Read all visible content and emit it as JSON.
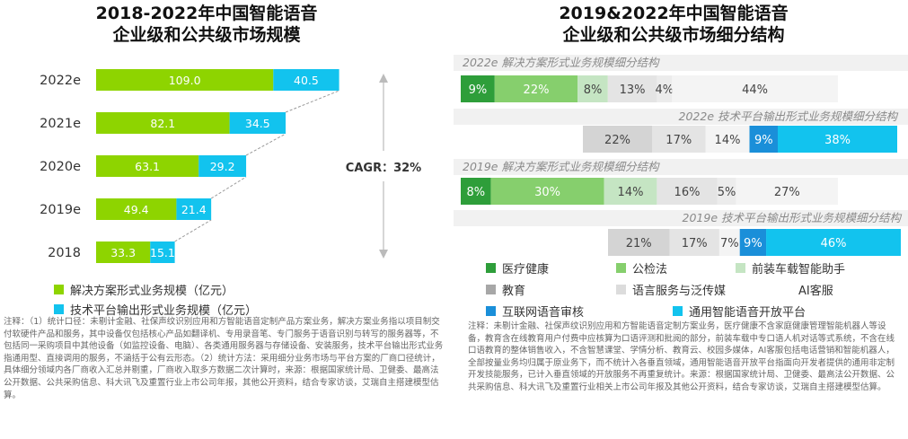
{
  "left": {
    "title_line1": "2018-2022年中国智能语音",
    "title_line2": "企业级和公共级市场规模",
    "cagr_label": "CAGR：32%",
    "legend": [
      {
        "label": "解决方案形式业务规模（亿元）",
        "color": "#8ed400"
      },
      {
        "label": "技术平台输出形式业务规模（亿元）",
        "color": "#12c3ee"
      }
    ],
    "notes": "注释：（1）统计口径：未剔计金融、社保声纹识别应用和方智能语音定制产品方案业务，解决方案业务指以项目制交付软硬件产品和服务，其中设备仅包括核心产品如翻译机、专用录音笔、专门服务于语音识别与转写的服务器等，不包括同一采购项目中其他设备（如监控设备、电脑）、各类通用服务器与存储设备、安装服务，技术平台输出形式业务指通用型、直接调用的服务，不涵括于公有云形态。（2）统计方法：采用细分业务市场与平台方案的厂商口径统计，具体细分领域内各厂商收入汇总并剔重，厂商收入取多方数据二次计算时，来源：根据国家统计局、卫健委、最高法公开数据、公共采购信息、科大讯飞及重置行业上市公司年报，其他公开资料，结合专家访谈，艾瑞自主搭建模型估算。"
  },
  "right": {
    "title_line1": "2019&2022年中国智能语音",
    "title_line2": "企业级和公共级市场细分结构",
    "subtitles": [
      "2022e 解决方案形式业务规模细分结构",
      "2022e 技术平台输出形式业务规模细分结构",
      "2019e 解决方案形式业务规模细分结构",
      "2019e 技术平台输出形式业务规模细分结构"
    ],
    "legend": [
      {
        "label": "医疗健康",
        "color": "#2e9e3a"
      },
      {
        "label": "公检法",
        "color": "#86cf6d"
      },
      {
        "label": "前装车载智能助手",
        "color": "#c5e5c3"
      },
      {
        "label": "教育",
        "color": "#a7a7a7"
      },
      {
        "label": "语言服务与泛传媒",
        "color": "#dcdcdc"
      },
      {
        "label": "AI客服",
        "color": "#f4f4f4"
      },
      {
        "label": "互联网语音审核",
        "color": "#1a8fd9"
      },
      {
        "label": "通用智能语音开放平台",
        "color": "#12c3ee"
      }
    ],
    "notes": "注释：未剔计金融、社保声纹识别应用和方智能语音定制方案业务，医疗健康不含家庭健康管理智能机器人等设备，教育含在线教育用户付费中应核算为口语评测和批阅的部分，前装车载中专口语人机对话等式系统，不含在线口语教育的整体销售收入，不含智慧课堂、学情分析、教育云、校园多媒体，AI客服包括电话营销和智能机器人，全部按量业务均归属于原业务下，而不统计入各垂直领域，通用智能语音开放平台指面向开发者提供的通用非定制开发技能服务，已计入垂直领域的开放服务不再重复统计。来源：根据国家统计局、卫健委、最高法公开数据、公共采购信息、科大讯飞及重置行业相关上市公司年报及其他公开资料，结合专家访谈，艾瑞自主搭建模型估算。"
  },
  "chart_data": [
    {
      "type": "bar",
      "orientation": "horizontal",
      "stacked": true,
      "title": "2018-2022年中国智能语音企业级和公共级市场规模",
      "categories": [
        "2018",
        "2019e",
        "2020e",
        "2021e",
        "2022e"
      ],
      "series": [
        {
          "name": "解决方案形式业务规模（亿元）",
          "color": "#8ed400",
          "values": [
            33.3,
            49.4,
            63.1,
            82.1,
            109.0
          ],
          "labels": [
            "33.3",
            "49.4",
            "63.1",
            "82.1",
            "109.0"
          ]
        },
        {
          "name": "技术平台输出形式业务规模（亿元）",
          "color": "#12c3ee",
          "values": [
            15.1,
            21.4,
            29.2,
            34.5,
            40.5
          ],
          "labels": [
            "15.1",
            "21.4",
            "29.2",
            "34.5",
            "40.5"
          ]
        }
      ],
      "annotation": "CAGR：32%"
    },
    {
      "type": "bar",
      "orientation": "horizontal",
      "stacked": true,
      "percent": true,
      "title": "2019&2022年中国智能语音企业级和公共级市场细分结构",
      "rows": [
        {
          "name": "2022e 解决方案形式业务规模细分结构",
          "segments": [
            {
              "category": "医疗健康",
              "value": 9,
              "color": "#2e9e3a",
              "label": "9%"
            },
            {
              "category": "公检法",
              "value": 22,
              "color": "#86cf6d",
              "label": "22%"
            },
            {
              "category": "前装车载智能助手",
              "value": 8,
              "color": "#c5e5c3",
              "label": "8%"
            },
            {
              "category": "教育",
              "value": 13,
              "color": "#e4e4e4",
              "label": "13%"
            },
            {
              "category": "语言服务与泛传媒",
              "value": 4,
              "color": "#ececec",
              "label": "4%"
            },
            {
              "category": "AI客服",
              "value": 44,
              "color": "#f4f4f4",
              "label": "44%"
            }
          ]
        },
        {
          "name": "2022e 技术平台输出形式业务规模细分结构",
          "segments": [
            {
              "category": "教育",
              "value": 22,
              "color": "#d4d4d4",
              "label": "22%"
            },
            {
              "category": "语言服务与泛传媒",
              "value": 17,
              "color": "#e4e4e4",
              "label": "17%"
            },
            {
              "category": "AI客服",
              "value": 14,
              "color": "#f4f4f4",
              "label": "14%"
            },
            {
              "category": "互联网语音审核",
              "value": 9,
              "color": "#1a8fd9",
              "label": "9%"
            },
            {
              "category": "通用智能语音开放平台",
              "value": 38,
              "color": "#12c3ee",
              "label": "38%"
            }
          ]
        },
        {
          "name": "2019e 解决方案形式业务规模细分结构",
          "segments": [
            {
              "category": "医疗健康",
              "value": 8,
              "color": "#2e9e3a",
              "label": "8%"
            },
            {
              "category": "公检法",
              "value": 30,
              "color": "#86cf6d",
              "label": "30%"
            },
            {
              "category": "前装车载智能助手",
              "value": 14,
              "color": "#c5e5c3",
              "label": "14%"
            },
            {
              "category": "教育",
              "value": 16,
              "color": "#e4e4e4",
              "label": "16%"
            },
            {
              "category": "语言服务与泛传媒",
              "value": 5,
              "color": "#ececec",
              "label": "5%"
            },
            {
              "category": "AI客服",
              "value": 27,
              "color": "#f4f4f4",
              "label": "27%"
            }
          ]
        },
        {
          "name": "2019e 技术平台输出形式业务规模细分结构",
          "segments": [
            {
              "category": "教育",
              "value": 21,
              "color": "#d4d4d4",
              "label": "21%"
            },
            {
              "category": "语言服务与泛传媒",
              "value": 17,
              "color": "#e4e4e4",
              "label": "17%"
            },
            {
              "category": "AI客服",
              "value": 7,
              "color": "#f4f4f4",
              "label": "7%"
            },
            {
              "category": "互联网语音审核",
              "value": 9,
              "color": "#1a8fd9",
              "label": "9%"
            },
            {
              "category": "通用智能语音开放平台",
              "value": 46,
              "color": "#12c3ee",
              "label": "46%"
            }
          ]
        }
      ]
    }
  ]
}
